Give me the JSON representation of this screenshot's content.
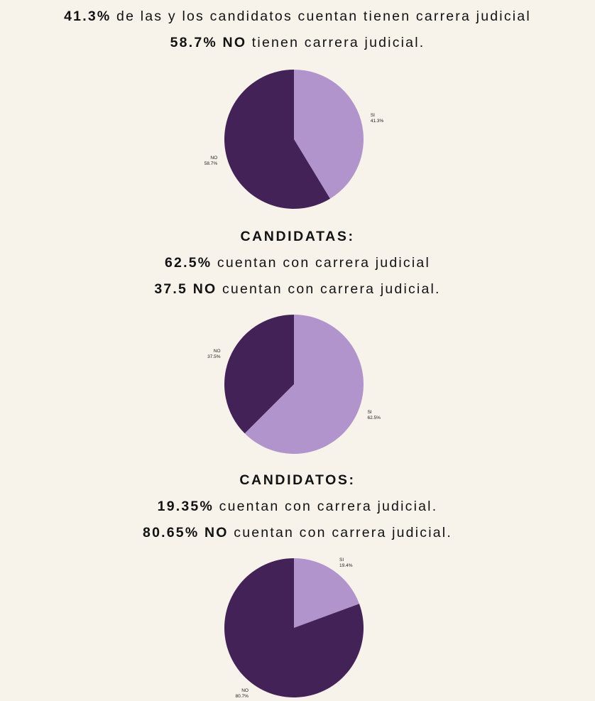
{
  "colors": {
    "si": "#b194cb",
    "no": "#432357",
    "background": "#f7f2ea",
    "text": "#121212"
  },
  "overall": {
    "line1_bold": "41.3%",
    "line1_text": " de las y los candidatos cuentan tienen carrera judicial",
    "line2_bold": "58.7% NO",
    "line2_text": " tienen carrera judicial."
  },
  "candidatas": {
    "heading": "CANDIDATAS:",
    "line1_bold": "62.5%",
    "line1_text": " cuentan con carrera judicial",
    "line2_bold": "37.5 NO",
    "line2_text": " cuentan con carrera judicial."
  },
  "candidatos": {
    "heading": "CANDIDATOS:",
    "line1_bold": "19.35%",
    "line1_text": " cuentan con carrera judicial.",
    "line2_bold": "80.65% NO",
    "line2_text": " cuentan con carrera judicial."
  },
  "chart_data": [
    {
      "type": "pie",
      "categories": [
        "SI",
        "NO"
      ],
      "values": [
        41.3,
        58.7
      ],
      "labels": [
        {
          "name": "SI",
          "value": "41.3%"
        },
        {
          "name": "NO",
          "value": "58.7%"
        }
      ]
    },
    {
      "type": "pie",
      "categories": [
        "SI",
        "NO"
      ],
      "values": [
        62.5,
        37.5
      ],
      "labels": [
        {
          "name": "SI",
          "value": "62.5%"
        },
        {
          "name": "NO",
          "value": "37.5%"
        }
      ]
    },
    {
      "type": "pie",
      "categories": [
        "SI",
        "NO"
      ],
      "values": [
        19.4,
        80.7
      ],
      "labels": [
        {
          "name": "SI",
          "value": "19.4%"
        },
        {
          "name": "NO",
          "value": "80.7%"
        }
      ]
    }
  ]
}
